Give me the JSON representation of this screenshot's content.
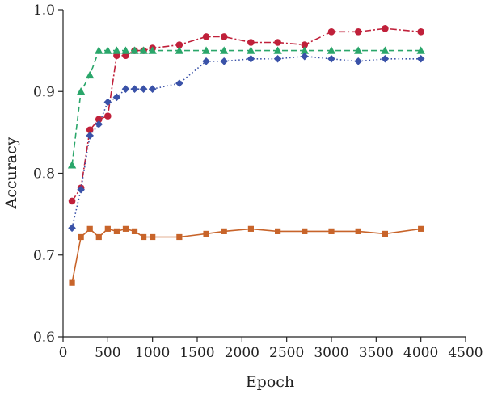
{
  "chart_data": {
    "type": "line",
    "title": "",
    "xlabel": "Epoch",
    "ylabel": "Accuracy",
    "xlim": [
      0,
      4500
    ],
    "ylim": [
      0.6,
      1.0
    ],
    "x_ticks": [
      0,
      500,
      1000,
      1500,
      2000,
      2500,
      3000,
      3500,
      4000,
      4500
    ],
    "y_ticks": [
      0.6,
      0.7,
      0.8,
      0.9,
      1.0
    ],
    "x_tick_labels": [
      "0",
      "500",
      "1000",
      "1500",
      "2000",
      "2500",
      "3000",
      "3500",
      "4000",
      "4500"
    ],
    "y_tick_labels": [
      "0.6",
      "0.7",
      "0.8",
      "0.9",
      "1.0"
    ],
    "grid": false,
    "legend": "none",
    "series": [
      {
        "color": "#c0203a",
        "marker": "circle",
        "line_style": "dash-dot",
        "x": [
          100,
          200,
          300,
          400,
          500,
          600,
          700,
          800,
          900,
          1000,
          1300,
          1600,
          1800,
          2100,
          2400,
          2700,
          3000,
          3300,
          3600,
          4000
        ],
        "y": [
          0.766,
          0.782,
          0.853,
          0.866,
          0.87,
          0.944,
          0.944,
          0.95,
          0.95,
          0.953,
          0.957,
          0.967,
          0.967,
          0.96,
          0.96,
          0.957,
          0.973,
          0.973,
          0.977,
          0.973
        ]
      },
      {
        "color": "#2aa66a",
        "marker": "triangle",
        "line_style": "dashed",
        "x": [
          100,
          200,
          300,
          400,
          500,
          600,
          700,
          800,
          900,
          1000,
          1300,
          1600,
          1800,
          2100,
          2400,
          2700,
          3000,
          3300,
          3600,
          4000
        ],
        "y": [
          0.81,
          0.9,
          0.92,
          0.95,
          0.95,
          0.95,
          0.95,
          0.95,
          0.95,
          0.95,
          0.95,
          0.95,
          0.95,
          0.95,
          0.95,
          0.95,
          0.95,
          0.95,
          0.95,
          0.95
        ]
      },
      {
        "color": "#3a52a8",
        "marker": "diamond",
        "line_style": "dotted",
        "x": [
          100,
          200,
          300,
          400,
          500,
          600,
          700,
          800,
          900,
          1000,
          1300,
          1600,
          1800,
          2100,
          2400,
          2700,
          3000,
          3300,
          3600,
          4000
        ],
        "y": [
          0.733,
          0.78,
          0.846,
          0.86,
          0.887,
          0.893,
          0.903,
          0.903,
          0.903,
          0.903,
          0.91,
          0.937,
          0.937,
          0.94,
          0.94,
          0.943,
          0.94,
          0.937,
          0.94,
          0.94
        ]
      },
      {
        "color": "#c8642a",
        "marker": "square",
        "line_style": "solid",
        "x": [
          100,
          200,
          300,
          400,
          500,
          600,
          700,
          800,
          900,
          1000,
          1300,
          1600,
          1800,
          2100,
          2400,
          2700,
          3000,
          3300,
          3600,
          4000
        ],
        "y": [
          0.666,
          0.722,
          0.732,
          0.722,
          0.732,
          0.729,
          0.732,
          0.729,
          0.722,
          0.722,
          0.722,
          0.726,
          0.729,
          0.732,
          0.729,
          0.729,
          0.729,
          0.729,
          0.726,
          0.732
        ]
      }
    ]
  }
}
